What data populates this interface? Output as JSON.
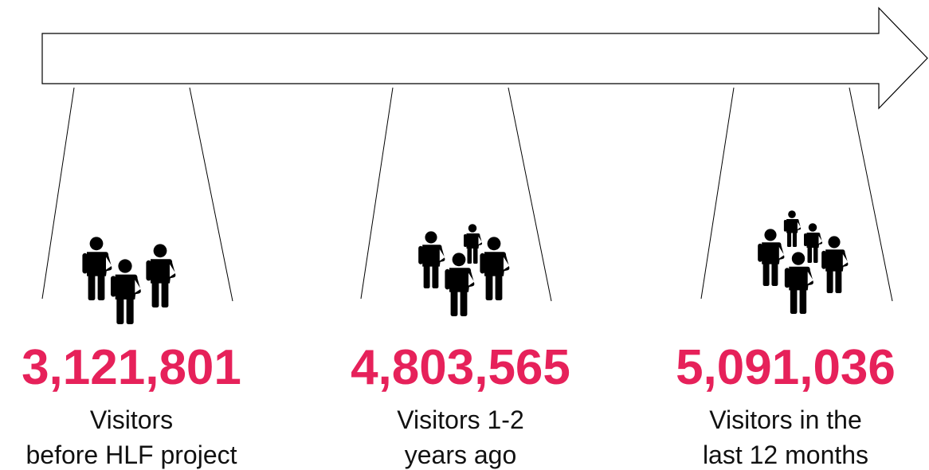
{
  "items": [
    {
      "value": "3,121,801",
      "label": [
        "Visitors",
        "before HLF project"
      ]
    },
    {
      "value": "4,803,565",
      "label": [
        "Visitors 1-2",
        "years ago"
      ]
    },
    {
      "value": "5,091,036",
      "label": [
        "Visitors in the",
        "last 12 months"
      ]
    }
  ]
}
